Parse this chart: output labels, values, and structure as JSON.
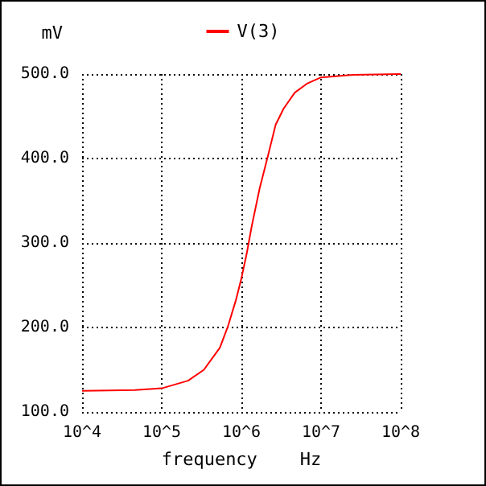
{
  "chart_data": {
    "type": "line",
    "xlabel": "frequency    Hz",
    "ylabel": "mV",
    "x": [
      10000,
      46000,
      100000,
      214000,
      339000,
      537000,
      676000,
      851000,
      1000000,
      1175000,
      1349000,
      1698000,
      2138000,
      2692000,
      3388000,
      4677000,
      6761000,
      10000000,
      25120000,
      100000000
    ],
    "series": [
      {
        "name": "V(3)",
        "color": "#ff0000",
        "values": [
          125,
          126,
          128,
          137,
          150,
          176,
          201,
          232,
          258,
          289,
          320,
          365,
          402,
          440,
          459,
          478,
          489,
          496,
          499,
          500
        ]
      }
    ],
    "log": "x",
    "xlim": [
      10000,
      100000000
    ],
    "xticks": [
      {
        "value": 10000,
        "label": "10^4"
      },
      {
        "value": 100000,
        "label": "10^5"
      },
      {
        "value": 1000000,
        "label": "10^6"
      },
      {
        "value": 10000000,
        "label": "10^7"
      },
      {
        "value": 100000000,
        "label": "10^8"
      }
    ],
    "ylim": [
      100,
      500
    ],
    "yticks": [
      {
        "value": 100,
        "label": "100.0"
      },
      {
        "value": 200,
        "label": "200.0"
      },
      {
        "value": 300,
        "label": "300.0"
      },
      {
        "value": 400,
        "label": "400.0"
      },
      {
        "value": 500,
        "label": "500.0"
      }
    ],
    "grid": true,
    "legend": "top",
    "marker": "none",
    "line_style": "solid"
  }
}
